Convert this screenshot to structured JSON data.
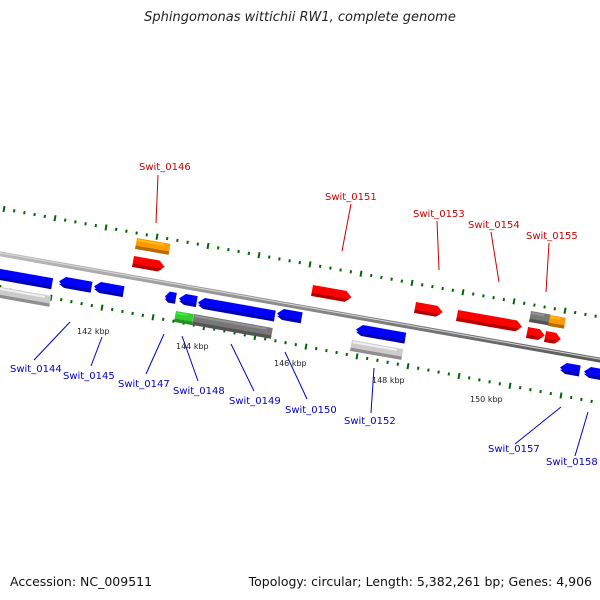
{
  "title": "Sphingomonas wittichii RW1, complete genome",
  "footer": {
    "accession": "Accession: NC_009511",
    "topology": "Topology: circular; Length: 5,382,261 bp; Genes: 4,906"
  },
  "colors": {
    "forward_cds": "#ff0000",
    "reverse_cds": "#0000ff",
    "rrna_orange": "#ff9900",
    "gray_gene": "#777777",
    "light_gray_gene": "#cccccc",
    "green_gene": "#33cc33",
    "forward_label": "#cc0000",
    "reverse_label": "#0000cc",
    "tick": "#006600"
  },
  "ruler_labels": [
    "142 kbp",
    "144 kbp",
    "146 kbp",
    "148 kbp",
    "150 kbp"
  ],
  "forward_labels": [
    "Swit_0146",
    "Swit_0151",
    "Swit_0153",
    "Swit_0154",
    "Swit_0155"
  ],
  "reverse_labels": [
    "Swit_0144",
    "Swit_0145",
    "Swit_0147",
    "Swit_0148",
    "Swit_0149",
    "Swit_0150",
    "Swit_0152",
    "Swit_0157",
    "Swit_0158"
  ]
}
